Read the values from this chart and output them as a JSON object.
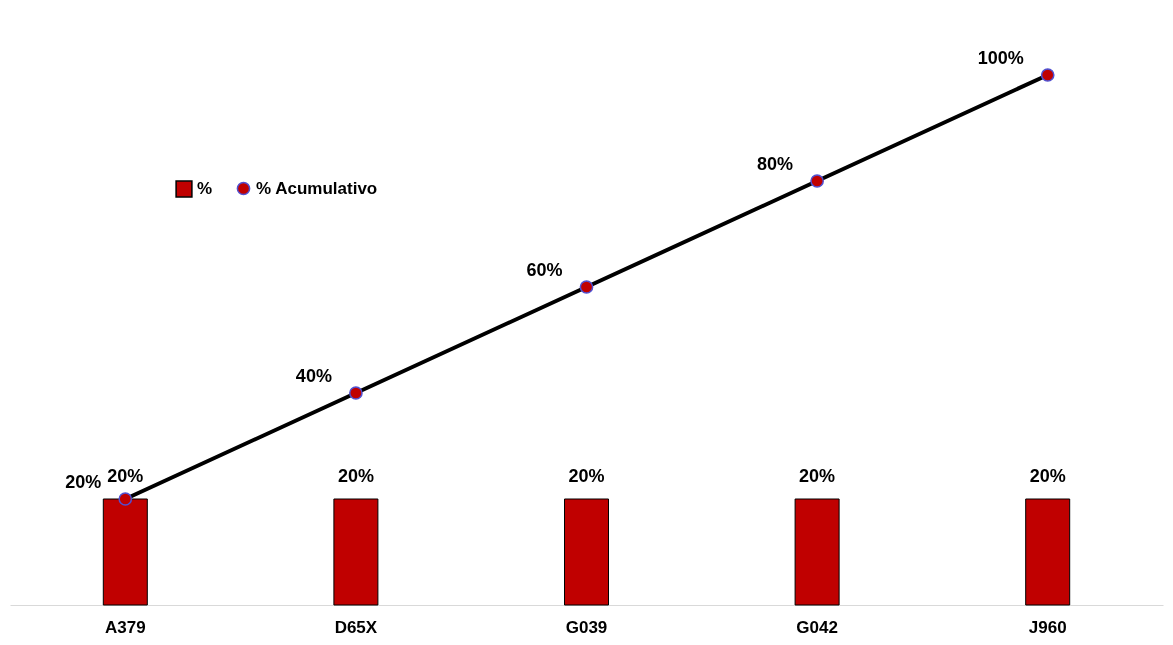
{
  "chart_data": {
    "type": "bar",
    "categories": [
      "A379",
      "D65X",
      "G039",
      "G042",
      "J960"
    ],
    "legend": "top left",
    "marker": "circle",
    "series": [
      {
        "name": "%",
        "color": "#c00000",
        "values": [
          20,
          20,
          20,
          20,
          20
        ],
        "value_labels": [
          "20%",
          "20%",
          "20%",
          "20%",
          "20%"
        ]
      },
      {
        "name": "% Acumulativo",
        "type": "line",
        "color": "#000000",
        "values": [
          20,
          40,
          60,
          80,
          100
        ],
        "value_labels": [
          "20%",
          "40%",
          "60%",
          "80%",
          "100%"
        ]
      }
    ]
  }
}
